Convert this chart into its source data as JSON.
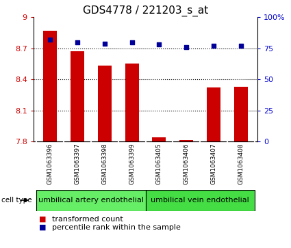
{
  "title": "GDS4778 / 221203_s_at",
  "samples": [
    "GSM1063396",
    "GSM1063397",
    "GSM1063398",
    "GSM1063399",
    "GSM1063405",
    "GSM1063406",
    "GSM1063407",
    "GSM1063408"
  ],
  "transformed_count": [
    8.87,
    8.67,
    8.53,
    8.55,
    7.84,
    7.81,
    8.32,
    8.33
  ],
  "percentile_rank": [
    82,
    80,
    79,
    80,
    78,
    76,
    77,
    77
  ],
  "cell_types": [
    {
      "label": "umbilical artery endothelial",
      "start": 0,
      "end": 4,
      "color": "#66EE66"
    },
    {
      "label": "umbilical vein endothelial",
      "start": 4,
      "end": 8,
      "color": "#44DD44"
    }
  ],
  "ylim_left": [
    7.8,
    9.0
  ],
  "ylim_right": [
    0,
    100
  ],
  "yticks_left": [
    7.8,
    8.1,
    8.4,
    8.7,
    9.0
  ],
  "yticks_right": [
    0,
    25,
    50,
    75,
    100
  ],
  "ytick_labels_left": [
    "7.8",
    "8.1",
    "8.4",
    "8.7",
    "9"
  ],
  "ytick_labels_right": [
    "0",
    "25",
    "50",
    "75",
    "100%"
  ],
  "bar_color": "#CC0000",
  "dot_color": "#000099",
  "bar_width": 0.5,
  "bg_color": "#FFFFFF",
  "sample_row_bg": "#C8C8C8",
  "title_fontsize": 11,
  "tick_fontsize": 8,
  "sample_fontsize": 6.5,
  "celltype_fontsize": 8,
  "legend_fontsize": 8
}
